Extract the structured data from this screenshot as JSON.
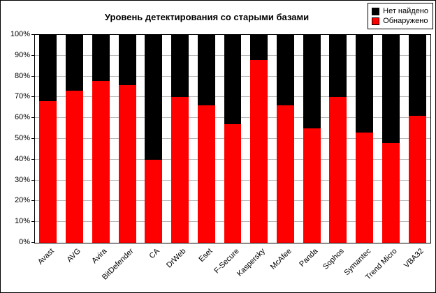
{
  "chart_data": {
    "type": "bar",
    "stacked": true,
    "title": "Уровень детектирования со старыми базами",
    "categories": [
      "Avast",
      "AVG",
      "Avira",
      "BitDefender",
      "CA",
      "DrWeb",
      "Eset",
      "F-Secure",
      "Kaspersky",
      "McAfee",
      "Panda",
      "Sophos",
      "Symantec",
      "Trend Micro",
      "VBA32"
    ],
    "series": [
      {
        "name": "Обнаружено",
        "color": "#ff0000",
        "values": [
          68,
          73,
          78,
          76,
          40,
          70,
          66,
          57,
          88,
          66,
          55,
          70,
          53,
          48,
          61
        ]
      },
      {
        "name": "Нет найдено",
        "color": "#000000",
        "values": [
          32,
          27,
          22,
          24,
          60,
          30,
          34,
          43,
          12,
          34,
          45,
          30,
          47,
          52,
          39
        ]
      }
    ],
    "xlabel": "",
    "ylabel": "",
    "ylim": [
      0,
      100
    ],
    "ytick_step": 10,
    "ytick_suffix": "%",
    "grid": true,
    "legend_position": "top-right"
  },
  "legend": {
    "items": [
      {
        "label": "Нет найдено",
        "color": "#000000"
      },
      {
        "label": "Обнаружено",
        "color": "#ff0000"
      }
    ]
  }
}
